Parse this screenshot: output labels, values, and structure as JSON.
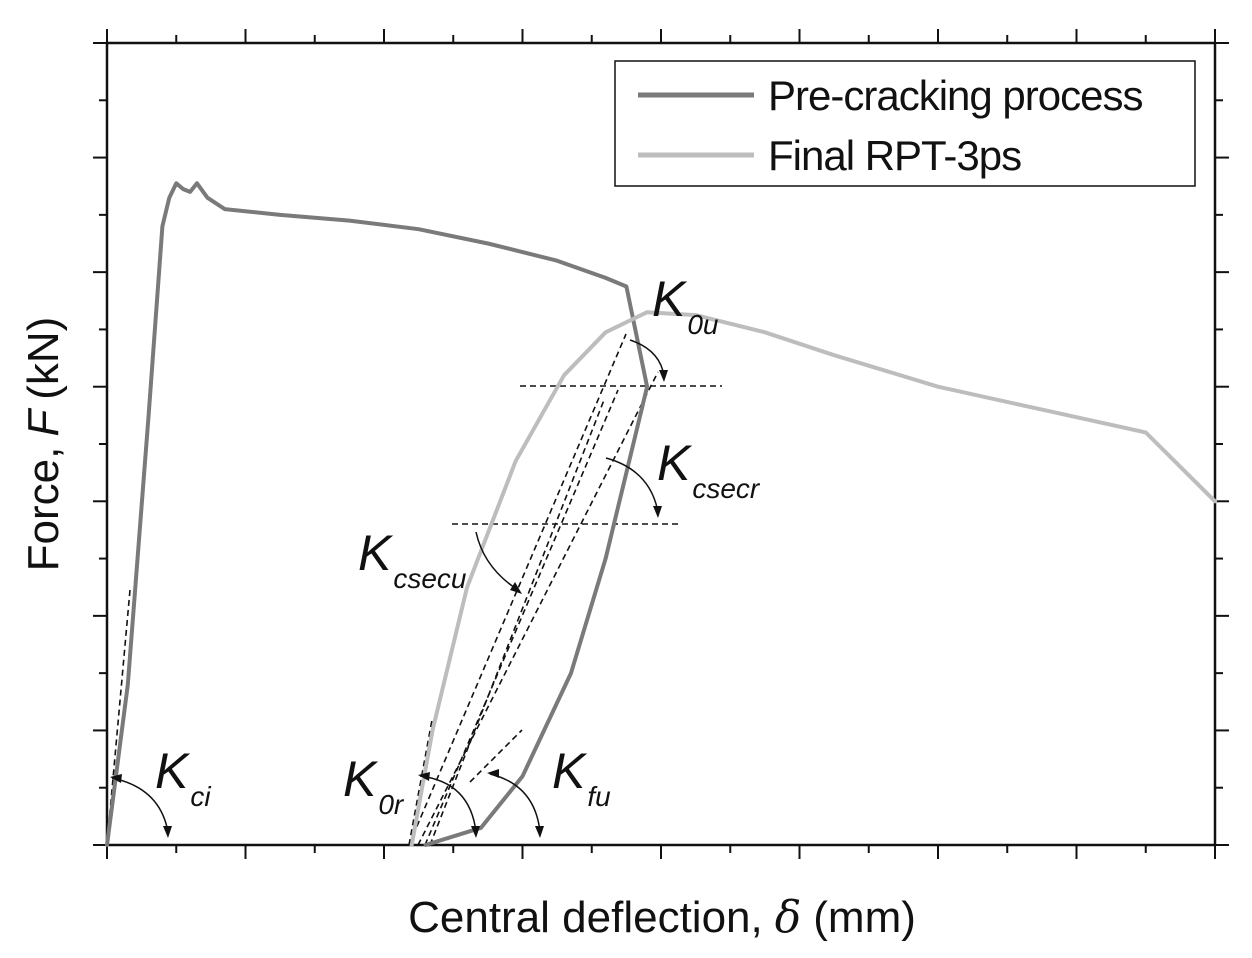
{
  "chart_data": {
    "type": "line",
    "xlabel": "Central deflection,",
    "xlabel_symbol": "δ",
    "xlabel_unit": "(mm)",
    "ylabel": "Force,",
    "ylabel_symbol": "F",
    "ylabel_unit": "(kN)",
    "tick_labels_shown": false,
    "xlim": [
      0,
      16
    ],
    "ylim": [
      0,
      14
    ],
    "legend_position": "top-right",
    "series": [
      {
        "name": "Pre-cracking process",
        "color": "#7a7a7a",
        "points": [
          [
            0,
            0
          ],
          [
            0.3,
            2.8
          ],
          [
            0.6,
            7.5
          ],
          [
            0.8,
            10.8
          ],
          [
            0.9,
            11.3
          ],
          [
            1.0,
            11.55
          ],
          [
            1.1,
            11.45
          ],
          [
            1.2,
            11.4
          ],
          [
            1.3,
            11.55
          ],
          [
            1.45,
            11.3
          ],
          [
            1.7,
            11.1
          ],
          [
            2.5,
            11.0
          ],
          [
            3.5,
            10.9
          ],
          [
            4.5,
            10.75
          ],
          [
            5.5,
            10.5
          ],
          [
            6.5,
            10.2
          ],
          [
            7.2,
            9.9
          ],
          [
            7.5,
            9.75
          ],
          [
            7.8,
            8.0
          ],
          [
            7.5,
            6.5
          ],
          [
            7.2,
            5.0
          ],
          [
            6.7,
            3.0
          ],
          [
            6.0,
            1.2
          ],
          [
            5.4,
            0.3
          ],
          [
            4.6,
            0
          ]
        ]
      },
      {
        "name": "Final RPT-3ps",
        "color": "#bdbdbd",
        "points": [
          [
            4.4,
            0
          ],
          [
            4.7,
            2.0
          ],
          [
            5.2,
            4.5
          ],
          [
            5.9,
            6.7
          ],
          [
            6.6,
            8.2
          ],
          [
            7.2,
            8.95
          ],
          [
            7.8,
            9.3
          ],
          [
            8.5,
            9.25
          ],
          [
            9.5,
            8.95
          ],
          [
            10.5,
            8.55
          ],
          [
            12.0,
            8.0
          ],
          [
            13.5,
            7.6
          ],
          [
            15.0,
            7.2
          ],
          [
            16.0,
            6.0
          ]
        ]
      }
    ],
    "annotations": [
      {
        "main": "K",
        "sub": "ci",
        "text": "Kci"
      },
      {
        "main": "K",
        "sub": "0r",
        "text": "K0r"
      },
      {
        "main": "K",
        "sub": "fu",
        "text": "Kfu"
      },
      {
        "main": "K",
        "sub": "0u",
        "text": "K0u"
      },
      {
        "main": "K",
        "sub": "csecr",
        "text": "Kcsecr"
      },
      {
        "main": "K",
        "sub": "csecu",
        "text": "Kcsecu"
      }
    ]
  }
}
